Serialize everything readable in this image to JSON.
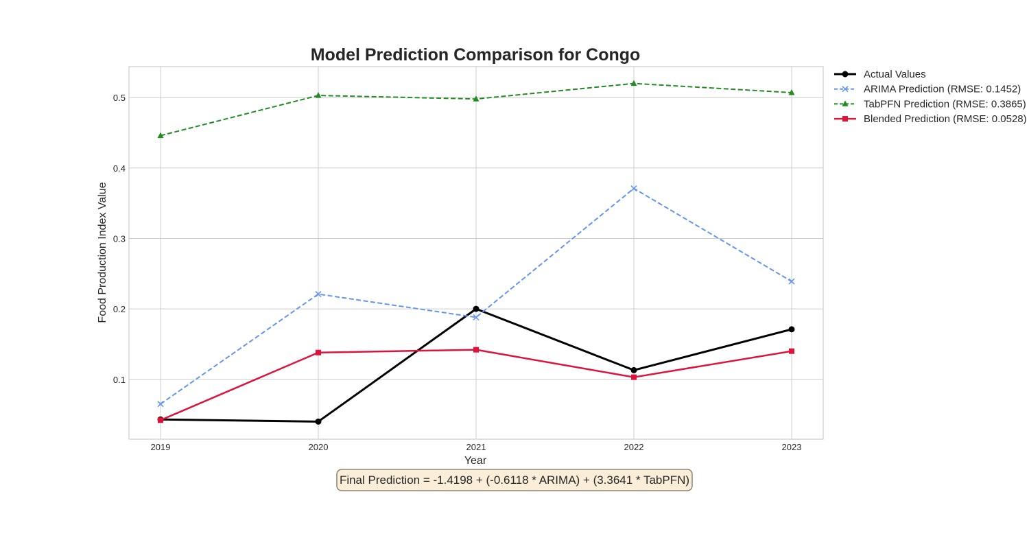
{
  "chart_data": {
    "type": "line",
    "title": "Model Prediction Comparison for Congo",
    "xlabel": "Year",
    "ylabel": "Food Production Index Value",
    "x": [
      "2019",
      "2020",
      "2021",
      "2022",
      "2023"
    ],
    "yticks": [
      "0.1",
      "0.2",
      "0.3",
      "0.4",
      "0.5"
    ],
    "ylim": [
      0.015,
      0.544
    ],
    "grid": true,
    "legend_position": "outside-top-right",
    "series": [
      {
        "name": "Actual Values",
        "values": [
          0.043,
          0.04,
          0.2,
          0.113,
          0.171
        ],
        "color": "#000000",
        "dash": "solid",
        "marker": "circle",
        "width": 3
      },
      {
        "name": "ARIMA Prediction (RMSE: 0.1452)",
        "values": [
          0.065,
          0.221,
          0.188,
          0.371,
          0.239
        ],
        "color": "#6495ED",
        "dash": "dashed",
        "marker": "x",
        "width": 2
      },
      {
        "name": "TabPFN Prediction (RMSE: 0.3865)",
        "values": [
          0.446,
          0.503,
          0.498,
          0.52,
          0.507
        ],
        "color": "#228B22",
        "dash": "dashed",
        "marker": "triangle",
        "width": 2
      },
      {
        "name": "Blended Prediction (RMSE: 0.0528)",
        "values": [
          0.042,
          0.138,
          0.142,
          0.103,
          0.14
        ],
        "color": "#DC143C",
        "dash": "solid",
        "marker": "square",
        "width": 2.5
      }
    ],
    "annotation": "Final Prediction = -1.4198 + (-0.6118 * ARIMA) + (3.3641 * TabPFN)"
  }
}
